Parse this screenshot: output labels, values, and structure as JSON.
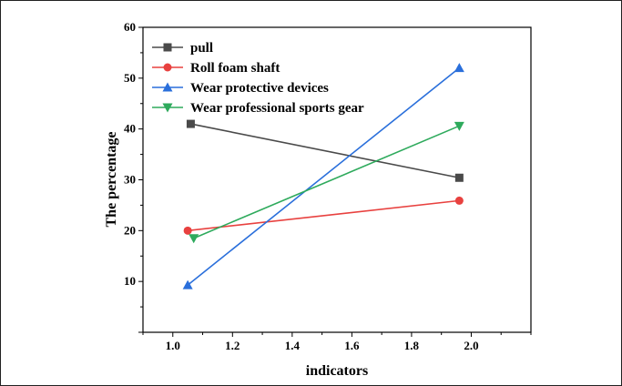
{
  "chart_data": {
    "type": "line",
    "xlabel": "indicators",
    "ylabel": "The percentage",
    "xlim": [
      0.9,
      2.2
    ],
    "ylim": [
      0,
      60
    ],
    "xticks": [
      "1.0",
      "1.2",
      "1.4",
      "1.6",
      "1.8",
      "2.0"
    ],
    "yticks": [
      "10",
      "20",
      "30",
      "40",
      "50",
      "60"
    ],
    "legend_position": "top-left",
    "grid": false,
    "series": [
      {
        "name": "pull",
        "color": "#4a4a4a",
        "marker": "square",
        "x": [
          1.06,
          1.96
        ],
        "y": [
          41.0,
          30.4
        ]
      },
      {
        "name": "Roll foam shaft",
        "color": "#e8413f",
        "marker": "circle",
        "x": [
          1.05,
          1.96
        ],
        "y": [
          20.0,
          25.9
        ]
      },
      {
        "name": "Wear protective devices",
        "color": "#2a6fdb",
        "marker": "triangle-up",
        "x": [
          1.05,
          1.96
        ],
        "y": [
          9.3,
          52.0
        ]
      },
      {
        "name": "Wear professional sports gear",
        "color": "#2eaa5c",
        "marker": "triangle-down",
        "x": [
          1.07,
          1.96
        ],
        "y": [
          18.5,
          40.6
        ]
      }
    ]
  }
}
